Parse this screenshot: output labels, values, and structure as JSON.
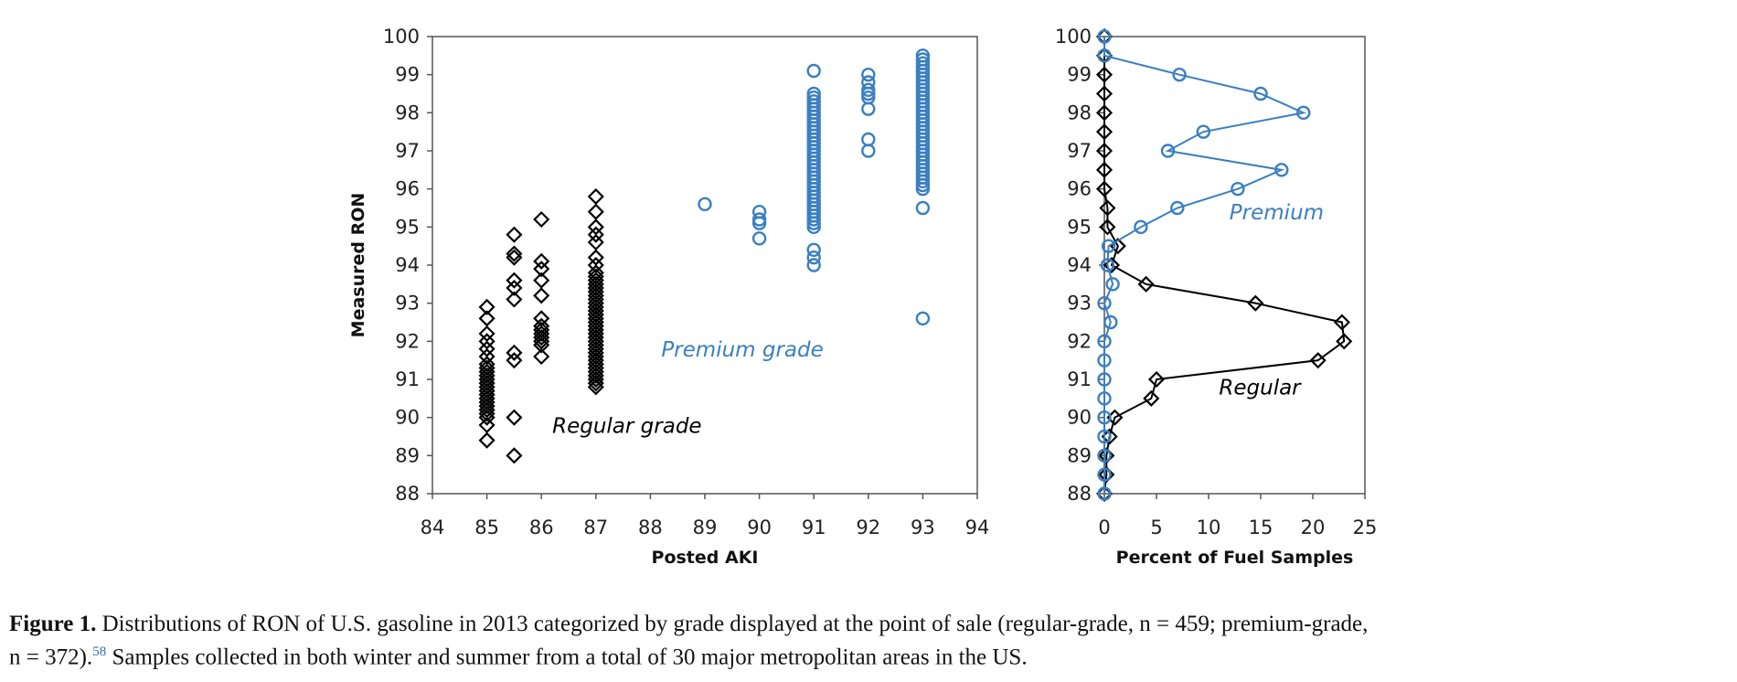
{
  "chart_data": [
    {
      "type": "scatter",
      "xlabel": "Posted AKI",
      "ylabel": "Measured RON",
      "xlim": [
        84,
        94
      ],
      "ylim": [
        88,
        100
      ],
      "xticks": [
        "84",
        "85",
        "86",
        "87",
        "88",
        "89",
        "90",
        "91",
        "92",
        "93",
        "94"
      ],
      "yticks": [
        "88",
        "89",
        "90",
        "91",
        "92",
        "93",
        "94",
        "95",
        "96",
        "97",
        "98",
        "99",
        "100"
      ],
      "grid": false,
      "series": [
        {
          "name": "Regular grade",
          "color": "#000000",
          "marker": "diamond",
          "points": [
            {
              "x": 85,
              "y": [
                89.4,
                89.8,
                90.0,
                90.1,
                90.2,
                90.3,
                90.4,
                90.5,
                90.6,
                90.7,
                90.8,
                90.9,
                91.0,
                91.1,
                91.2,
                91.3,
                91.4,
                91.6,
                91.8,
                92.0,
                92.2,
                92.6,
                92.9
              ]
            },
            {
              "x": 85.5,
              "y": [
                89.0,
                90.0,
                91.5,
                91.7,
                93.1,
                93.4,
                93.6,
                94.2,
                94.3,
                94.8
              ]
            },
            {
              "x": 86,
              "y": [
                91.6,
                91.9,
                92.0,
                92.1,
                92.2,
                92.3,
                92.4,
                92.6,
                93.2,
                93.6,
                93.9,
                94.1,
                95.2
              ]
            },
            {
              "x": 87,
              "y": [
                90.8,
                90.9,
                91.0,
                91.1,
                91.2,
                91.3,
                91.4,
                91.5,
                91.6,
                91.7,
                91.8,
                91.9,
                92.0,
                92.1,
                92.2,
                92.3,
                92.4,
                92.5,
                92.6,
                92.7,
                92.8,
                92.9,
                93.0,
                93.1,
                93.2,
                93.3,
                93.4,
                93.5,
                93.6,
                93.7,
                93.8,
                94.0,
                94.2,
                94.6,
                94.8,
                95.0,
                95.4,
                95.8
              ]
            }
          ]
        },
        {
          "name": "Premium grade",
          "color": "#3a7fc1",
          "marker": "circle",
          "points": [
            {
              "x": 89,
              "y": [
                95.6
              ]
            },
            {
              "x": 90,
              "y": [
                94.7,
                95.1,
                95.2,
                95.4
              ]
            },
            {
              "x": 91,
              "y": [
                94.0,
                94.2,
                94.4,
                95.0,
                95.1,
                95.2,
                95.3,
                95.4,
                95.5,
                95.6,
                95.7,
                95.8,
                95.9,
                96.0,
                96.1,
                96.2,
                96.3,
                96.4,
                96.5,
                96.6,
                96.7,
                96.8,
                96.9,
                97.0,
                97.1,
                97.2,
                97.3,
                97.4,
                97.5,
                97.6,
                97.7,
                97.8,
                97.9,
                98.0,
                98.1,
                98.2,
                98.3,
                98.4,
                98.5,
                99.1
              ]
            },
            {
              "x": 92,
              "y": [
                97.0,
                97.3,
                98.1,
                98.4,
                98.5,
                98.6,
                98.8,
                99.0
              ]
            },
            {
              "x": 93,
              "y": [
                92.6,
                95.5,
                96.0,
                96.1,
                96.2,
                96.3,
                96.4,
                96.5,
                96.6,
                96.7,
                96.8,
                96.9,
                97.0,
                97.1,
                97.2,
                97.3,
                97.4,
                97.5,
                97.6,
                97.7,
                97.8,
                97.9,
                98.0,
                98.1,
                98.2,
                98.3,
                98.4,
                98.5,
                98.6,
                98.7,
                98.8,
                98.9,
                99.0,
                99.1,
                99.2,
                99.3,
                99.4,
                99.5
              ]
            }
          ]
        }
      ],
      "annotations": [
        {
          "text": "Regular grade",
          "series": "Regular grade",
          "at": [
            86.2,
            89.6
          ]
        },
        {
          "text": "Premium grade",
          "series": "Premium grade",
          "at": [
            88.2,
            91.6
          ]
        }
      ]
    },
    {
      "type": "line",
      "xlabel": "Percent of Fuel Samples",
      "ylabel": "",
      "xlim": [
        0,
        25
      ],
      "ylim": [
        88,
        100
      ],
      "xticks": [
        "0",
        "5",
        "10",
        "15",
        "20",
        "25"
      ],
      "yticks": [
        "88",
        "89",
        "90",
        "91",
        "92",
        "93",
        "94",
        "95",
        "96",
        "97",
        "98",
        "99",
        "100"
      ],
      "grid": false,
      "y": [
        88,
        88.5,
        89,
        89.5,
        90,
        90.5,
        91,
        91.5,
        92,
        92.5,
        93,
        93.5,
        94,
        94.5,
        95,
        95.5,
        96,
        96.5,
        97,
        97.5,
        98,
        98.5,
        99,
        99.5,
        100
      ],
      "series": [
        {
          "name": "Regular",
          "color": "#000000",
          "marker": "diamond",
          "values": [
            0,
            0.2,
            0.2,
            0.5,
            1,
            4.5,
            5,
            20.5,
            23,
            22.8,
            14.5,
            4,
            0.7,
            1.3,
            0.3,
            0.3,
            0,
            0,
            0,
            0,
            0,
            0,
            0,
            0,
            0
          ]
        },
        {
          "name": "Premium",
          "color": "#3a7fc1",
          "marker": "circle",
          "values": [
            0,
            0,
            0,
            0,
            0,
            0,
            0,
            0,
            0,
            0.6,
            0,
            0.8,
            0.3,
            0.4,
            3.5,
            7,
            12.8,
            17,
            6.1,
            9.5,
            19.1,
            15,
            7.2,
            0,
            0
          ]
        }
      ],
      "annotations": [
        {
          "text": "Premium",
          "series": "Premium",
          "at": [
            12,
            95.2
          ]
        },
        {
          "text": "Regular",
          "series": "Regular",
          "at": [
            11,
            90.6
          ]
        }
      ]
    }
  ],
  "caption": {
    "label": "Figure 1.",
    "line1": " Distributions of RON of U.S. gasoline in 2013 categorized by grade displayed at the point of sale (regular-grade, n = 459; premium-grade,",
    "line2a": "n = 372).",
    "ref": "58",
    "line2b": " Samples collected in both winter and summer from a total of 30 major metropolitan areas in the US."
  }
}
